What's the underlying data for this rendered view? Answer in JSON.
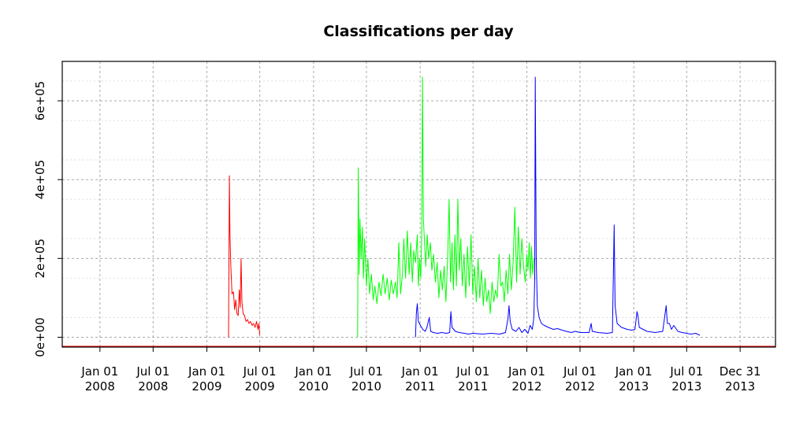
{
  "chart_data": {
    "type": "line",
    "title": "Classifications per day",
    "xlabel": "",
    "ylabel": "",
    "x_ticks": [
      {
        "date": "2008-01-01",
        "line1": "Jan 01",
        "line2": "2008"
      },
      {
        "date": "2008-07-01",
        "line1": "Jul 01",
        "line2": "2008"
      },
      {
        "date": "2009-01-01",
        "line1": "Jan 01",
        "line2": "2009"
      },
      {
        "date": "2009-07-01",
        "line1": "Jul 01",
        "line2": "2009"
      },
      {
        "date": "2010-01-01",
        "line1": "Jan 01",
        "line2": "2010"
      },
      {
        "date": "2010-07-01",
        "line1": "Jul 01",
        "line2": "2010"
      },
      {
        "date": "2011-01-01",
        "line1": "Jan 01",
        "line2": "2011"
      },
      {
        "date": "2011-07-01",
        "line1": "Jul 01",
        "line2": "2011"
      },
      {
        "date": "2012-01-01",
        "line1": "Jan 01",
        "line2": "2012"
      },
      {
        "date": "2012-07-01",
        "line1": "Jul 01",
        "line2": "2012"
      },
      {
        "date": "2013-01-01",
        "line1": "Jan 01",
        "line2": "2013"
      },
      {
        "date": "2013-07-01",
        "line1": "Jul 01",
        "line2": "2013"
      },
      {
        "date": "2013-12-31",
        "line1": "Dec 31",
        "line2": "2013"
      }
    ],
    "y_ticks": [
      {
        "value": 0,
        "label": "0e+00"
      },
      {
        "value": 200000,
        "label": "2e+05"
      },
      {
        "value": 400000,
        "label": "4e+05"
      },
      {
        "value": 600000,
        "label": "6e+05"
      }
    ],
    "xlim": [
      "2007-08-25",
      "2014-05-01"
    ],
    "ylim": [
      -25000,
      700000
    ],
    "grid": true,
    "series": [
      {
        "color": "#ff0000",
        "points": [
          [
            "2009-03-16",
            0
          ],
          [
            "2009-03-19",
            410000
          ],
          [
            "2009-03-21",
            260000
          ],
          [
            "2009-03-24",
            180000
          ],
          [
            "2009-03-28",
            110000
          ],
          [
            "2009-04-02",
            115000
          ],
          [
            "2009-04-06",
            70000
          ],
          [
            "2009-04-10",
            95000
          ],
          [
            "2009-04-14",
            60000
          ],
          [
            "2009-04-18",
            55000
          ],
          [
            "2009-04-22",
            120000
          ],
          [
            "2009-04-25",
            75000
          ],
          [
            "2009-04-28",
            200000
          ],
          [
            "2009-05-01",
            90000
          ],
          [
            "2009-05-05",
            60000
          ],
          [
            "2009-05-10",
            55000
          ],
          [
            "2009-05-15",
            40000
          ],
          [
            "2009-05-20",
            45000
          ],
          [
            "2009-05-25",
            35000
          ],
          [
            "2009-05-30",
            40000
          ],
          [
            "2009-06-05",
            30000
          ],
          [
            "2009-06-10",
            35000
          ],
          [
            "2009-06-15",
            25000
          ],
          [
            "2009-06-20",
            40000
          ],
          [
            "2009-06-25",
            20000
          ],
          [
            "2009-06-28",
            35000
          ],
          [
            "2009-07-01",
            5000
          ]
        ]
      },
      {
        "color": "#00ff00",
        "points": [
          [
            "2010-06-01",
            0
          ],
          [
            "2010-06-03",
            430000
          ],
          [
            "2010-06-06",
            160000
          ],
          [
            "2010-06-09",
            300000
          ],
          [
            "2010-06-13",
            200000
          ],
          [
            "2010-06-17",
            280000
          ],
          [
            "2010-06-21",
            150000
          ],
          [
            "2010-06-25",
            250000
          ],
          [
            "2010-07-01",
            130000
          ],
          [
            "2010-07-06",
            200000
          ],
          [
            "2010-07-12",
            110000
          ],
          [
            "2010-07-18",
            160000
          ],
          [
            "2010-07-24",
            95000
          ],
          [
            "2010-07-30",
            130000
          ],
          [
            "2010-08-06",
            85000
          ],
          [
            "2010-08-13",
            140000
          ],
          [
            "2010-08-20",
            105000
          ],
          [
            "2010-08-27",
            160000
          ],
          [
            "2010-09-03",
            110000
          ],
          [
            "2010-09-10",
            150000
          ],
          [
            "2010-09-17",
            95000
          ],
          [
            "2010-09-24",
            145000
          ],
          [
            "2010-10-01",
            110000
          ],
          [
            "2010-10-08",
            140000
          ],
          [
            "2010-10-14",
            100000
          ],
          [
            "2010-10-20",
            240000
          ],
          [
            "2010-10-26",
            110000
          ],
          [
            "2010-11-01",
            160000
          ],
          [
            "2010-11-06",
            250000
          ],
          [
            "2010-11-12",
            150000
          ],
          [
            "2010-11-18",
            270000
          ],
          [
            "2010-11-24",
            160000
          ],
          [
            "2010-11-30",
            240000
          ],
          [
            "2010-12-05",
            140000
          ],
          [
            "2010-12-10",
            220000
          ],
          [
            "2010-12-16",
            190000
          ],
          [
            "2010-12-22",
            260000
          ],
          [
            "2010-12-26",
            130000
          ],
          [
            "2010-12-30",
            200000
          ],
          [
            "2011-01-03",
            150000
          ],
          [
            "2011-01-06",
            240000
          ],
          [
            "2011-01-09",
            660000
          ],
          [
            "2011-01-12",
            300000
          ],
          [
            "2011-01-16",
            240000
          ],
          [
            "2011-01-20",
            180000
          ],
          [
            "2011-01-25",
            260000
          ],
          [
            "2011-01-30",
            200000
          ],
          [
            "2011-02-05",
            240000
          ],
          [
            "2011-02-10",
            170000
          ],
          [
            "2011-02-16",
            210000
          ],
          [
            "2011-02-22",
            140000
          ],
          [
            "2011-02-28",
            190000
          ],
          [
            "2011-03-06",
            100000
          ],
          [
            "2011-03-12",
            170000
          ],
          [
            "2011-03-18",
            120000
          ],
          [
            "2011-03-24",
            180000
          ],
          [
            "2011-03-30",
            90000
          ],
          [
            "2011-04-05",
            200000
          ],
          [
            "2011-04-10",
            350000
          ],
          [
            "2011-04-15",
            140000
          ],
          [
            "2011-04-20",
            240000
          ],
          [
            "2011-04-25",
            120000
          ],
          [
            "2011-04-30",
            260000
          ],
          [
            "2011-05-05",
            130000
          ],
          [
            "2011-05-10",
            350000
          ],
          [
            "2011-05-15",
            170000
          ],
          [
            "2011-05-20",
            250000
          ],
          [
            "2011-05-25",
            130000
          ],
          [
            "2011-05-31",
            210000
          ],
          [
            "2011-06-06",
            100000
          ],
          [
            "2011-06-12",
            230000
          ],
          [
            "2011-06-18",
            130000
          ],
          [
            "2011-06-24",
            260000
          ],
          [
            "2011-06-30",
            110000
          ],
          [
            "2011-07-06",
            180000
          ],
          [
            "2011-07-12",
            90000
          ],
          [
            "2011-07-18",
            200000
          ],
          [
            "2011-07-24",
            100000
          ],
          [
            "2011-07-30",
            170000
          ],
          [
            "2011-08-05",
            80000
          ],
          [
            "2011-08-11",
            150000
          ],
          [
            "2011-08-17",
            90000
          ],
          [
            "2011-08-23",
            120000
          ],
          [
            "2011-08-29",
            60000
          ],
          [
            "2011-09-04",
            140000
          ],
          [
            "2011-09-10",
            90000
          ],
          [
            "2011-09-16",
            120000
          ],
          [
            "2011-09-22",
            100000
          ],
          [
            "2011-09-28",
            210000
          ],
          [
            "2011-10-04",
            130000
          ],
          [
            "2011-10-10",
            140000
          ],
          [
            "2011-10-16",
            90000
          ],
          [
            "2011-10-22",
            170000
          ],
          [
            "2011-10-28",
            110000
          ],
          [
            "2011-11-03",
            210000
          ],
          [
            "2011-11-09",
            120000
          ],
          [
            "2011-11-15",
            190000
          ],
          [
            "2011-11-21",
            330000
          ],
          [
            "2011-11-27",
            140000
          ],
          [
            "2011-12-03",
            280000
          ],
          [
            "2011-12-09",
            160000
          ],
          [
            "2011-12-15",
            250000
          ],
          [
            "2011-12-21",
            180000
          ],
          [
            "2011-12-27",
            140000
          ],
          [
            "2012-01-01",
            210000
          ],
          [
            "2012-01-05",
            170000
          ],
          [
            "2012-01-09",
            240000
          ],
          [
            "2012-01-13",
            150000
          ],
          [
            "2012-01-17",
            230000
          ],
          [
            "2012-01-21",
            160000
          ],
          [
            "2012-01-25",
            200000
          ]
        ]
      },
      {
        "color": "#0000ff",
        "points": [
          [
            "2010-12-16",
            0
          ],
          [
            "2010-12-19",
            60000
          ],
          [
            "2010-12-22",
            85000
          ],
          [
            "2010-12-26",
            40000
          ],
          [
            "2011-01-02",
            30000
          ],
          [
            "2011-01-10",
            20000
          ],
          [
            "2011-01-18",
            15000
          ],
          [
            "2011-01-24",
            25000
          ],
          [
            "2011-02-01",
            50000
          ],
          [
            "2011-02-06",
            15000
          ],
          [
            "2011-02-15",
            12000
          ],
          [
            "2011-03-01",
            10000
          ],
          [
            "2011-03-15",
            12000
          ],
          [
            "2011-04-01",
            10000
          ],
          [
            "2011-04-12",
            12000
          ],
          [
            "2011-04-16",
            65000
          ],
          [
            "2011-04-20",
            25000
          ],
          [
            "2011-05-01",
            15000
          ],
          [
            "2011-05-15",
            12000
          ],
          [
            "2011-06-01",
            10000
          ],
          [
            "2011-06-15",
            8000
          ],
          [
            "2011-07-01",
            10000
          ],
          [
            "2011-08-01",
            8000
          ],
          [
            "2011-09-01",
            10000
          ],
          [
            "2011-10-01",
            8000
          ],
          [
            "2011-10-20",
            12000
          ],
          [
            "2011-10-28",
            45000
          ],
          [
            "2011-11-01",
            80000
          ],
          [
            "2011-11-05",
            40000
          ],
          [
            "2011-11-12",
            20000
          ],
          [
            "2011-11-25",
            15000
          ],
          [
            "2011-12-05",
            25000
          ],
          [
            "2011-12-15",
            12000
          ],
          [
            "2011-12-25",
            20000
          ],
          [
            "2012-01-05",
            10000
          ],
          [
            "2012-01-12",
            30000
          ],
          [
            "2012-01-20",
            20000
          ],
          [
            "2012-01-25",
            50000
          ],
          [
            "2012-01-28",
            150000
          ],
          [
            "2012-01-30",
            660000
          ],
          [
            "2012-02-02",
            200000
          ],
          [
            "2012-02-06",
            80000
          ],
          [
            "2012-02-12",
            50000
          ],
          [
            "2012-02-20",
            35000
          ],
          [
            "2012-03-01",
            30000
          ],
          [
            "2012-03-15",
            25000
          ],
          [
            "2012-04-01",
            20000
          ],
          [
            "2012-04-15",
            22000
          ],
          [
            "2012-05-01",
            18000
          ],
          [
            "2012-05-15",
            15000
          ],
          [
            "2012-06-01",
            12000
          ],
          [
            "2012-06-15",
            15000
          ],
          [
            "2012-07-01",
            12000
          ],
          [
            "2012-08-01",
            12000
          ],
          [
            "2012-08-08",
            35000
          ],
          [
            "2012-08-12",
            15000
          ],
          [
            "2012-09-01",
            12000
          ],
          [
            "2012-10-01",
            10000
          ],
          [
            "2012-10-20",
            12000
          ],
          [
            "2012-10-26",
            285000
          ],
          [
            "2012-10-29",
            80000
          ],
          [
            "2012-11-05",
            35000
          ],
          [
            "2012-11-20",
            25000
          ],
          [
            "2012-12-10",
            20000
          ],
          [
            "2012-12-25",
            18000
          ],
          [
            "2013-01-05",
            20000
          ],
          [
            "2013-01-12",
            65000
          ],
          [
            "2013-01-15",
            55000
          ],
          [
            "2013-01-20",
            25000
          ],
          [
            "2013-02-15",
            15000
          ],
          [
            "2013-03-15",
            12000
          ],
          [
            "2013-04-10",
            15000
          ],
          [
            "2013-04-22",
            80000
          ],
          [
            "2013-04-26",
            35000
          ],
          [
            "2013-05-03",
            35000
          ],
          [
            "2013-05-10",
            20000
          ],
          [
            "2013-05-18",
            30000
          ],
          [
            "2013-06-01",
            15000
          ],
          [
            "2013-06-15",
            12000
          ],
          [
            "2013-07-01",
            10000
          ],
          [
            "2013-07-15",
            8000
          ],
          [
            "2013-08-01",
            10000
          ],
          [
            "2013-08-15",
            5000
          ]
        ]
      }
    ]
  }
}
